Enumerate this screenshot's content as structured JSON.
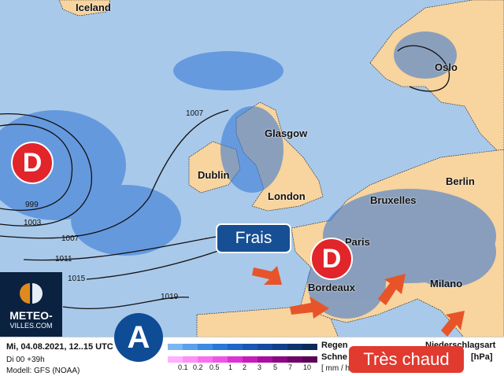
{
  "colors": {
    "sea": "#a9c9ea",
    "land": "#f8d49e",
    "rain": "#2f72d6",
    "low": "#e2242b",
    "high": "#0f4c96",
    "frais": "#164f94",
    "chaud": "#e13a2f"
  },
  "cities": [
    "Iceland",
    "Oslo",
    "Glasgow",
    "Dublin",
    "London",
    "Bruxelles",
    "Berlin",
    "Paris",
    "Bordeaux",
    "Milano"
  ],
  "isobars": [
    "1007",
    "999",
    "1003",
    "1007",
    "1011",
    "1015",
    "1019"
  ],
  "lows": [
    "D",
    "D"
  ],
  "high": "A",
  "labels": {
    "frais": "Frais",
    "chaud": "Très chaud"
  },
  "logo": {
    "line1": "METEO-",
    "line2": "VILLES.COM"
  },
  "footer": {
    "date": "Mi, 04.08.2021, 12..15 UTC",
    "run": "Di 00 +39h",
    "model": "Modell: GFS (NOAA)",
    "rain": "Regen",
    "snow": "Schne",
    "unit": "[ mm / h",
    "type": "Niederschlagsart",
    "pressure": "[hPa]",
    "ticks": [
      "0.1",
      "0.2",
      "0.5",
      "1",
      "2",
      "3",
      "5",
      "7",
      "10"
    ]
  },
  "legend_rain_colors": [
    "#7ab6f0",
    "#5aa0ec",
    "#3d8ae4",
    "#2878d8",
    "#1f66c8",
    "#1a56b4",
    "#164aa0",
    "#123f8a",
    "#0e3470",
    "#0b2a58"
  ],
  "legend_snow_colors": [
    "#ffb0ff",
    "#ff90f5",
    "#f870ee",
    "#ee55e4",
    "#dd33d2",
    "#c81bbd",
    "#a80fa0",
    "#8a0882",
    "#6e0468",
    "#5a0256"
  ]
}
